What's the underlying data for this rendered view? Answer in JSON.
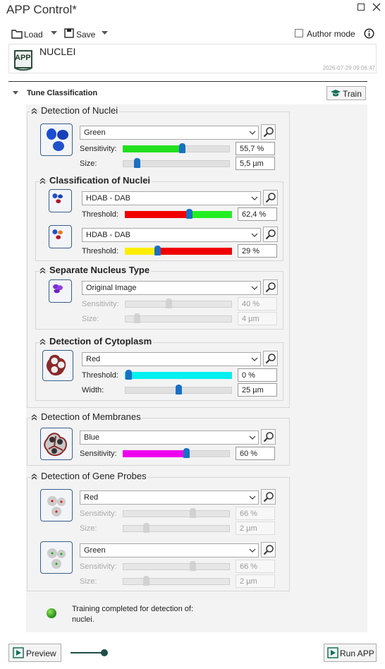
{
  "window": {
    "title": "APP Control*"
  },
  "toolbar": {
    "load": "Load",
    "save": "Save",
    "author_mode": "Author mode"
  },
  "app": {
    "icon_label": "APP",
    "name": "NUCLEI",
    "timestamp": "2026-07-29 09:06:47"
  },
  "section": {
    "title": "Tune Classification",
    "train": "Train"
  },
  "groups": [
    {
      "title": "Detection of Nuclei",
      "items": [
        {
          "channel": "Green",
          "params": [
            {
              "label": "Sensitivity:",
              "value": "55,7 %"
            },
            {
              "label": "Size:",
              "value": "5,5 µm"
            }
          ]
        }
      ],
      "subgroups": [
        {
          "title": "Classification of Nuclei",
          "items": [
            {
              "channel": "HDAB - DAB",
              "params": [
                {
                  "label": "Threshold:",
                  "value": "62,4 %"
                }
              ]
            },
            {
              "channel": "HDAB - DAB",
              "params": [
                {
                  "label": "Threshold:",
                  "value": "29 %"
                }
              ]
            }
          ]
        },
        {
          "title": "Separate Nucleus Type",
          "items": [
            {
              "channel": "Original Image",
              "params": [
                {
                  "label": "Sensitivity:",
                  "value": "40 %"
                },
                {
                  "label": "Size:",
                  "value": "4 µm"
                }
              ]
            }
          ]
        },
        {
          "title": "Detection of Cytoplasm",
          "items": [
            {
              "channel": "Red",
              "params": [
                {
                  "label": "Threshold:",
                  "value": "0 %"
                },
                {
                  "label": "Width:",
                  "value": "25 µm"
                }
              ]
            }
          ]
        }
      ]
    },
    {
      "title": "Detection of Membranes",
      "items": [
        {
          "channel": "Blue",
          "params": [
            {
              "label": "Sensitivity:",
              "value": "60 %"
            }
          ]
        }
      ]
    },
    {
      "title": "Detection of Gene Probes",
      "items": [
        {
          "channel": "Red",
          "params": [
            {
              "label": "Sensitivity:",
              "value": "66 %"
            },
            {
              "label": "Size:",
              "value": "2 µm"
            }
          ]
        },
        {
          "channel": "Green",
          "params": [
            {
              "label": "Sensitivity:",
              "value": "66 %"
            },
            {
              "label": "Size:",
              "value": "2 µm"
            }
          ]
        }
      ]
    }
  ],
  "status": {
    "line1": "Training completed for detection of:",
    "line2": "nuclei."
  },
  "footer": {
    "preview": "Preview",
    "run": "Run APP"
  }
}
